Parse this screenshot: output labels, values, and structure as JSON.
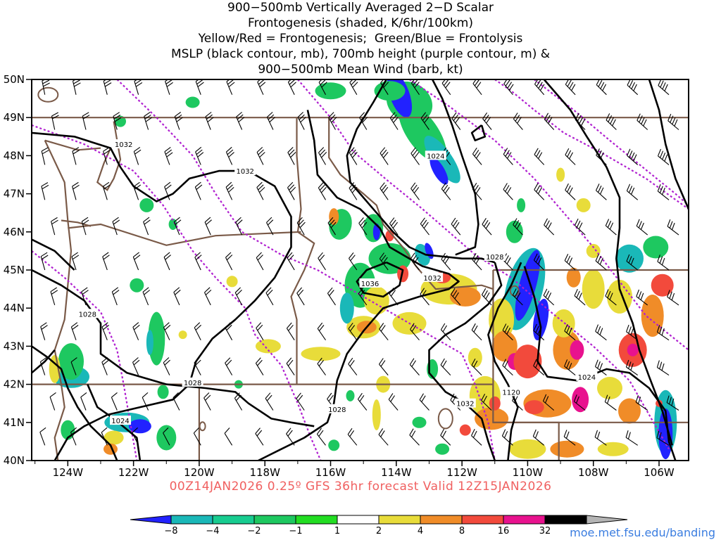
{
  "title_lines": [
    "900−500mb Vertically Averaged 2−D Scalar",
    "Frontogenesis (shaded, K/6hr/100km)",
    "Yellow/Red = Frontogenesis;  Green/Blue = Frontolysis",
    "MSLP (black contour, mb), 700mb height (purple contour, m) &",
    "900−500mb Mean Wind (barb, kt)"
  ],
  "lat_labels": [
    "50N",
    "49N",
    "48N",
    "47N",
    "46N",
    "45N",
    "44N",
    "43N",
    "42N",
    "41N",
    "40N"
  ],
  "lon_labels": [
    "124W",
    "122W",
    "120W",
    "118W",
    "116W",
    "114W",
    "112W",
    "110W",
    "108W",
    "106W"
  ],
  "contour_labels": [
    {
      "text": "1032",
      "lon": -122.3,
      "lat": 48.3
    },
    {
      "text": "1032",
      "lon": -118.6,
      "lat": 47.6
    },
    {
      "text": "1024",
      "lon": -112.8,
      "lat": 48.0
    },
    {
      "text": "1028",
      "lon": -111.0,
      "lat": 45.35
    },
    {
      "text": "1032",
      "lon": -112.9,
      "lat": 44.8
    },
    {
      "text": "1036",
      "lon": -114.8,
      "lat": 44.65
    },
    {
      "text": "1028",
      "lon": -123.4,
      "lat": 43.85
    },
    {
      "text": "1028",
      "lon": -120.2,
      "lat": 42.05
    },
    {
      "text": "1028",
      "lon": -115.8,
      "lat": 41.35
    },
    {
      "text": "1032",
      "lon": -111.9,
      "lat": 41.5
    },
    {
      "text": "1120",
      "lon": -110.5,
      "lat": 41.8
    },
    {
      "text": "1024",
      "lon": -108.2,
      "lat": 42.2
    },
    {
      "text": "1024",
      "lon": -122.4,
      "lat": 41.05
    }
  ],
  "valid_line": "00Z14JAN2026 0.25º GFS 36hr forecast Valid 12Z15JAN2026",
  "colorbar": {
    "labels": [
      "−8",
      "−4",
      "−2",
      "−1",
      "1",
      "2",
      "4",
      "8",
      "16",
      "32"
    ],
    "colors": [
      "#2222ff",
      "#1ab8b8",
      "#18cc90",
      "#1ec860",
      "#22dd22",
      "#ffffff",
      "#e8dc3a",
      "#f08c28",
      "#f24a3c",
      "#e8128e",
      "#000000",
      "#b4b4b4"
    ]
  },
  "legend_colors": {
    "blue": "#2222ff",
    "teal": "#1ab8b8",
    "seagreen": "#18cc90",
    "green": "#1ec860",
    "yellow": "#e8dc3a",
    "orange": "#f08c28",
    "red": "#f24a3c",
    "magenta": "#e8128e",
    "mslp": "#000000",
    "height": "#b020d0",
    "borders": "#7a5a48"
  },
  "credit": "moe.met.fsu.edu/banding"
}
